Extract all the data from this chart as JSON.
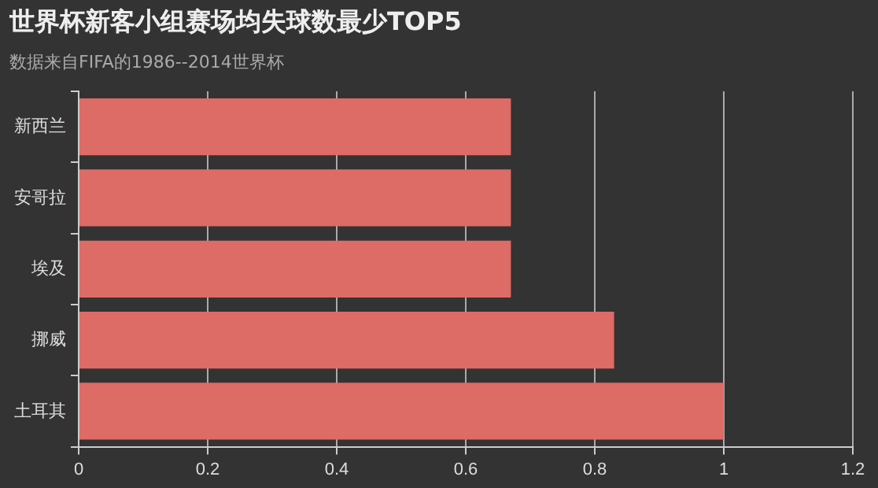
{
  "chart_data": {
    "type": "bar",
    "orientation": "horizontal",
    "title": "世界杯新客小组赛场均失球数最少TOP5",
    "subtitle": "数据来自FIFA的1986--2014世界杯",
    "categories": [
      "新西兰",
      "安哥拉",
      "埃及",
      "挪威",
      "土耳其"
    ],
    "values": [
      0.67,
      0.67,
      0.67,
      0.83,
      1
    ],
    "color": "#dd6b66",
    "xlim": [
      0,
      1.2
    ],
    "xticks": [
      0,
      0.2,
      0.4,
      0.6,
      0.8,
      1,
      1.2
    ],
    "grid": "x",
    "legend": false
  }
}
